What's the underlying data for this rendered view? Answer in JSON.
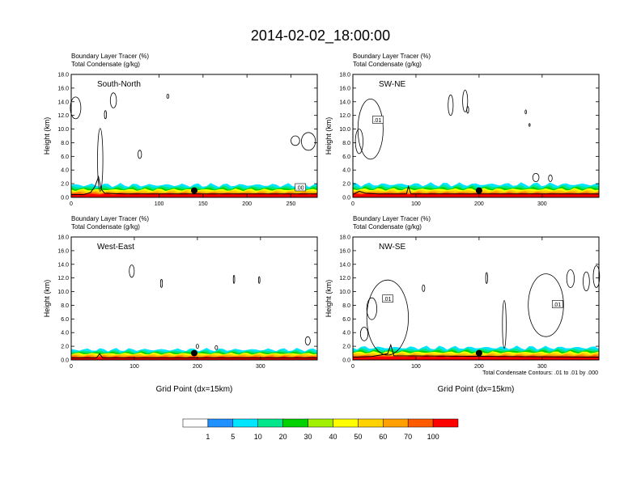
{
  "title": "2014-02-02_18:00:00",
  "chart_data": [
    {
      "type": "heatmap",
      "panel_label": "South-North",
      "header": [
        "Boundary Layer Tracer   (%)",
        "Total Condensate   (g/kg)"
      ],
      "ylabel": "Height (km)",
      "xlabel": "",
      "xlim": [
        0,
        280
      ],
      "ylim": [
        0,
        18
      ],
      "xticks": [
        "0",
        "100",
        "150",
        "200",
        "250"
      ],
      "xtick_values": [
        0,
        100,
        150,
        200,
        250
      ],
      "yticks": [
        "0.0",
        "2.0",
        "4.0",
        "6.0",
        "8.0",
        "10.0",
        "12.0",
        "14.0",
        "16.0",
        "18.0"
      ],
      "marker_x": 140,
      "contour_labels": [
        ".00"
      ],
      "tracer_top_km": 1.8,
      "condensate_contours": [
        {
          "cx": 5,
          "cy": 13.1,
          "rx": 6,
          "ry": 1.6
        },
        {
          "cx": 48,
          "cy": 14.2,
          "rx": 3.5,
          "ry": 1.1
        },
        {
          "cx": 39,
          "cy": 12.1,
          "rx": 1.2,
          "ry": 0.6
        },
        {
          "cx": 110,
          "cy": 14.8,
          "rx": 1.2,
          "ry": 0.3
        },
        {
          "cx": 78,
          "cy": 6.3,
          "rx": 2,
          "ry": 0.6
        },
        {
          "cx": 33,
          "cy": 5.5,
          "rx": 3,
          "ry": 4.6
        },
        {
          "cx": 270,
          "cy": 8.2,
          "rx": 8,
          "ry": 1.3
        },
        {
          "cx": 255,
          "cy": 8.3,
          "rx": 5,
          "ry": 0.7
        }
      ],
      "terrain": [
        [
          0,
          0.4
        ],
        [
          14,
          0.4
        ],
        [
          22,
          0.7
        ],
        [
          27,
          1.6
        ],
        [
          31,
          3.0
        ],
        [
          34,
          1.2
        ],
        [
          38,
          0.6
        ],
        [
          60,
          0.5
        ],
        [
          120,
          0.5
        ],
        [
          280,
          0.5
        ]
      ]
    },
    {
      "type": "heatmap",
      "panel_label": "SW-NE",
      "header": [
        "Boundary Layer Tracer   (%)",
        "Total Condensate   (g/kg)"
      ],
      "ylabel": "Height (km)",
      "xlabel": "",
      "xlim": [
        0,
        390
      ],
      "ylim": [
        0,
        18
      ],
      "xticks": [
        "0",
        "100",
        "200",
        "300"
      ],
      "xtick_values": [
        0,
        100,
        200,
        300
      ],
      "yticks": [
        "0.0",
        "2.0",
        "4.0",
        "6.0",
        "8.0",
        "10.0",
        "12.0",
        "14.0",
        "16.0",
        "18.0"
      ],
      "marker_x": 200,
      "contour_labels": [
        ".01"
      ],
      "tracer_top_km": 1.9,
      "condensate_contours": [
        {
          "cx": 28,
          "cy": 10.0,
          "rx": 20,
          "ry": 4.4
        },
        {
          "cx": 10,
          "cy": 8.2,
          "rx": 6,
          "ry": 1.8
        },
        {
          "cx": 155,
          "cy": 13.5,
          "rx": 4,
          "ry": 1.5
        },
        {
          "cx": 178,
          "cy": 14.1,
          "rx": 4,
          "ry": 1.6
        },
        {
          "cx": 182,
          "cy": 12.8,
          "rx": 1.5,
          "ry": 0.5
        },
        {
          "cx": 274,
          "cy": 12.5,
          "rx": 1,
          "ry": 0.3
        },
        {
          "cx": 280,
          "cy": 10.6,
          "rx": 1,
          "ry": 0.2
        },
        {
          "cx": 290,
          "cy": 2.9,
          "rx": 5,
          "ry": 0.6
        },
        {
          "cx": 313,
          "cy": 2.8,
          "rx": 3,
          "ry": 0.5
        }
      ],
      "terrain": [
        [
          0,
          0.4
        ],
        [
          10,
          0.9
        ],
        [
          20,
          0.6
        ],
        [
          40,
          0.5
        ],
        [
          85,
          0.5
        ],
        [
          88,
          1.6
        ],
        [
          92,
          0.5
        ],
        [
          390,
          0.5
        ]
      ]
    },
    {
      "type": "heatmap",
      "panel_label": "West-East",
      "header": [
        "Boundary Layer Tracer   (%)",
        "Total Condensate   (g/kg)"
      ],
      "ylabel": "Height (km)",
      "xlabel": "Grid Point (dx=15km)",
      "xlim": [
        0,
        390
      ],
      "ylim": [
        0,
        18
      ],
      "xticks": [
        "0",
        "100",
        "200",
        "300"
      ],
      "xtick_values": [
        0,
        100,
        200,
        300
      ],
      "yticks": [
        "0.0",
        "2.0",
        "4.0",
        "6.0",
        "8.0",
        "10.0",
        "12.0",
        "14.0",
        "16.0",
        "18.0"
      ],
      "marker_x": 195,
      "contour_labels": [],
      "tracer_top_km": 1.5,
      "condensate_contours": [
        {
          "cx": 96,
          "cy": 13.0,
          "rx": 4,
          "ry": 0.9
        },
        {
          "cx": 143,
          "cy": 11.2,
          "rx": 1.5,
          "ry": 0.6
        },
        {
          "cx": 258,
          "cy": 11.8,
          "rx": 1.2,
          "ry": 0.6
        },
        {
          "cx": 298,
          "cy": 11.7,
          "rx": 1.2,
          "ry": 0.5
        },
        {
          "cx": 375,
          "cy": 2.8,
          "rx": 4,
          "ry": 0.6
        },
        {
          "cx": 200,
          "cy": 2.0,
          "rx": 2,
          "ry": 0.3
        },
        {
          "cx": 230,
          "cy": 1.8,
          "rx": 2,
          "ry": 0.3
        }
      ],
      "terrain": [
        [
          0,
          0.3
        ],
        [
          40,
          0.3
        ],
        [
          45,
          0.9
        ],
        [
          50,
          0.3
        ],
        [
          390,
          0.3
        ]
      ]
    },
    {
      "type": "heatmap",
      "panel_label": "NW-SE",
      "header": [
        "Boundary Layer Tracer   (%)",
        "Total Condensate   (g/kg)"
      ],
      "ylabel": "Height (km)",
      "xlabel": "Grid Point (dx=15km)",
      "xlim": [
        0,
        390
      ],
      "ylim": [
        0,
        18
      ],
      "xticks": [
        "0",
        "100",
        "200",
        "300"
      ],
      "xtick_values": [
        0,
        100,
        200,
        300
      ],
      "yticks": [
        "0.0",
        "2.0",
        "4.0",
        "6.0",
        "8.0",
        "10.0",
        "12.0",
        "14.0",
        "16.0",
        "18.0"
      ],
      "marker_x": 200,
      "contour_labels": [
        ".01",
        ".01"
      ],
      "tracer_top_km": 1.8,
      "condensate_contours": [
        {
          "cx": 55,
          "cy": 6.2,
          "rx": 33,
          "ry": 5.5
        },
        {
          "cx": 30,
          "cy": 7.5,
          "rx": 8,
          "ry": 1.6
        },
        {
          "cx": 18,
          "cy": 3.8,
          "rx": 6,
          "ry": 1.0
        },
        {
          "cx": 112,
          "cy": 10.5,
          "rx": 2,
          "ry": 0.5
        },
        {
          "cx": 212,
          "cy": 12.0,
          "rx": 1.5,
          "ry": 0.8
        },
        {
          "cx": 240,
          "cy": 5.2,
          "rx": 3,
          "ry": 3.5
        },
        {
          "cx": 306,
          "cy": 8.0,
          "rx": 28,
          "ry": 4.6
        },
        {
          "cx": 345,
          "cy": 11.9,
          "rx": 6,
          "ry": 1.3
        },
        {
          "cx": 370,
          "cy": 11.5,
          "rx": 5,
          "ry": 1.4
        },
        {
          "cx": 386,
          "cy": 12.2,
          "rx": 5,
          "ry": 1.6
        }
      ],
      "terrain": [
        [
          0,
          0.4
        ],
        [
          30,
          0.5
        ],
        [
          55,
          0.9
        ],
        [
          60,
          2.2
        ],
        [
          65,
          0.6
        ],
        [
          390,
          0.4
        ]
      ],
      "footnote": "Total Condensate Contours: .01 to .01 by .000"
    }
  ],
  "colorbar": {
    "labels": [
      "1",
      "5",
      "10",
      "20",
      "30",
      "40",
      "50",
      "60",
      "70",
      "100"
    ],
    "colors": [
      "#ffffff",
      "#1e90ff",
      "#00e5ff",
      "#00e68a",
      "#00d100",
      "#a0f000",
      "#ffff00",
      "#ffd200",
      "#ffa000",
      "#ff5a00",
      "#ff0000"
    ]
  }
}
